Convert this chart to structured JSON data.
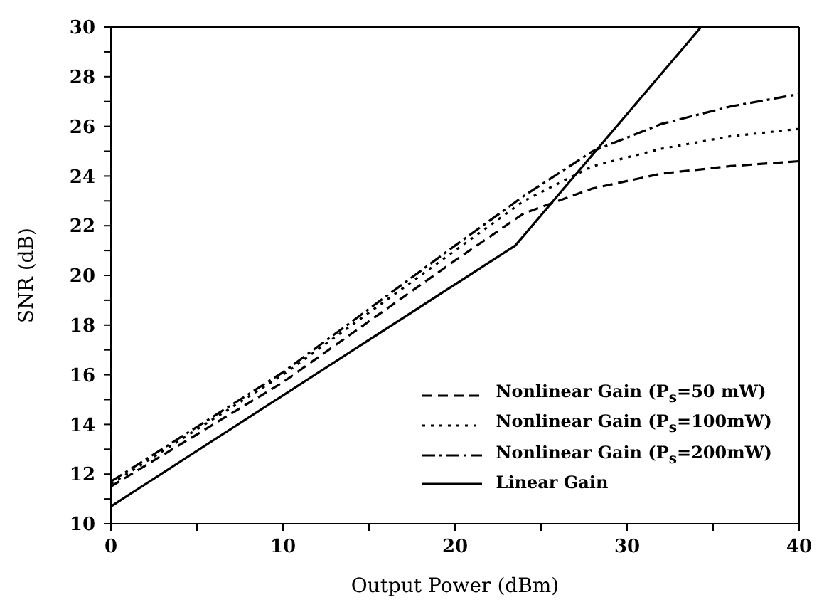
{
  "chart_data": {
    "type": "line",
    "xlabel": "Output Power (dBm)",
    "ylabel": "SNR (dB)",
    "xlim": [
      0,
      40
    ],
    "xticks": [
      0,
      {
        "value": 5,
        "label": null
      },
      10,
      {
        "value": 15,
        "label": null
      },
      20,
      {
        "value": 25,
        "label": null
      },
      30,
      {
        "value": 35,
        "label": null
      },
      40
    ],
    "ylim": [
      10,
      30
    ],
    "yticks": [
      10,
      {
        "value": 11,
        "label": null
      },
      12,
      {
        "value": 13,
        "label": null
      },
      14,
      {
        "value": 15,
        "label": null
      },
      16,
      {
        "value": 17,
        "label": null
      },
      18,
      {
        "value": 19,
        "label": null
      },
      20,
      {
        "value": 21,
        "label": null
      },
      22,
      {
        "value": 23,
        "label": null
      },
      24,
      {
        "value": 25,
        "label": null
      },
      26,
      {
        "value": 27,
        "label": null
      },
      28,
      {
        "value": 29,
        "label": null
      },
      30
    ],
    "legend": "bottom right",
    "marker": "none",
    "series": [
      {
        "name": "Nonlinear Gain (P$_{s}$=50 mW)",
        "color": "#000000",
        "line_style": "dashed",
        "x": [
          0,
          10,
          20,
          24,
          28,
          32,
          36,
          40
        ],
        "values": [
          11.5,
          15.7,
          20.6,
          22.5,
          23.5,
          24.1,
          24.4,
          24.6
        ]
      },
      {
        "name": "Nonlinear Gain (P$_{s}$=100mW)",
        "color": "#000000",
        "line_style": "dotted",
        "x": [
          0,
          10,
          20,
          24,
          28,
          32,
          36,
          40
        ],
        "values": [
          11.6,
          16.0,
          21.0,
          23.0,
          24.4,
          25.1,
          25.6,
          25.9
        ]
      },
      {
        "name": "Nonlinear Gain (P$_{s}$=200mW)",
        "color": "#000000",
        "line_style": "dashdot",
        "x": [
          0,
          10,
          20,
          24,
          28,
          32,
          36,
          40
        ],
        "values": [
          11.7,
          16.1,
          21.2,
          23.2,
          25.0,
          26.1,
          26.8,
          27.3
        ]
      },
      {
        "name": "Linear Gain",
        "color": "#000000",
        "line_style": "solid",
        "x": [
          0,
          23.5,
          34.3
        ],
        "values": [
          10.7,
          21.2,
          30
        ]
      }
    ]
  }
}
